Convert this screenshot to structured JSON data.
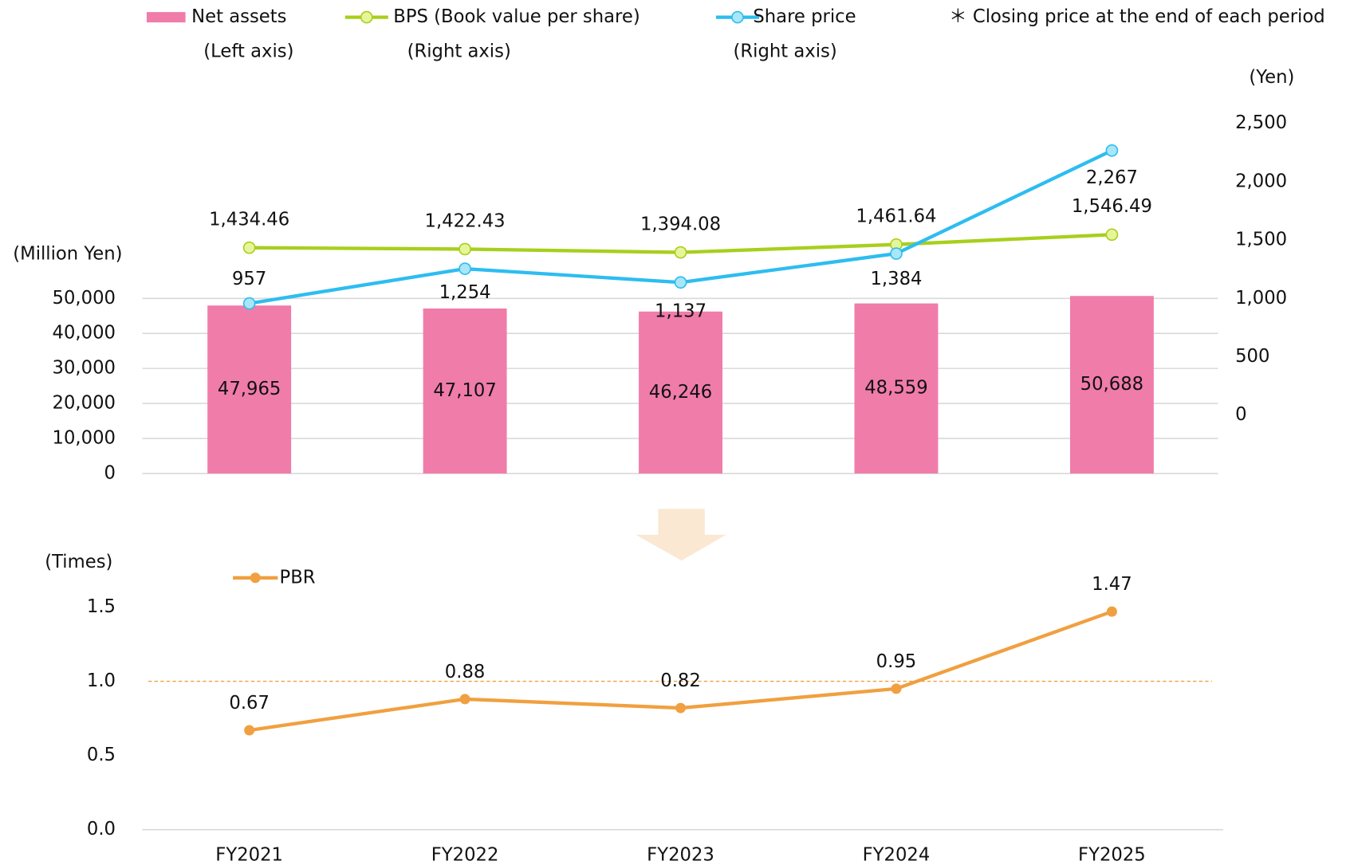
{
  "chart_data": [
    {
      "type": "bar_line",
      "ylabel": "(Million Yen)",
      "y2label": "(Yen)",
      "annotation": "＊ Closing price at the end of each period",
      "ylim": [
        0,
        100000
      ],
      "yticks": [
        0,
        {
          "value": 10000,
          "label": "10,000"
        },
        {
          "value": 20000,
          "label": "20,000"
        },
        {
          "value": 30000,
          "label": "30,000"
        },
        {
          "value": 40000,
          "label": "40,000"
        },
        {
          "value": 50000,
          "label": "50,000"
        }
      ],
      "y2lim": [
        -500,
        2500
      ],
      "y2ticks": [
        0,
        500,
        {
          "value": 1000,
          "label": "1,000"
        },
        {
          "value": 1500,
          "label": "1,500"
        },
        {
          "value": 2000,
          "label": "2,000"
        },
        {
          "value": 2500,
          "label": "2,500"
        }
      ],
      "series": [
        {
          "name": "Net assets",
          "legend_note": "(Left axis)",
          "type": "bar",
          "color": "#f07caa",
          "values": [
            47965,
            47107,
            46246,
            48559,
            50688
          ],
          "value_labels": [
            "47,965",
            "47,107",
            "46,246",
            "48,559",
            "50,688"
          ]
        },
        {
          "name": "BPS (Book value per share)",
          "legend_note": "(Right axis)",
          "type": "line",
          "axis": "y2",
          "color": "#a8cf1c",
          "marker_color": "#e6f59a",
          "values": [
            1434.46,
            1422.43,
            1394.08,
            1461.64,
            1546.49
          ],
          "value_labels": [
            "1,434.46",
            "1,422.43",
            "1,394.08",
            "1,461.64",
            "1,546.49"
          ]
        },
        {
          "name": "Share price",
          "legend_note": "(Right axis)",
          "type": "line",
          "axis": "y2",
          "color": "#2dbdf0",
          "marker_color": "#a9e6f7",
          "values": [
            957,
            1254,
            1137,
            1384,
            2267
          ],
          "value_labels": [
            "957",
            "1,254",
            "1,137",
            "1,384",
            "2,267"
          ]
        }
      ]
    },
    {
      "type": "line",
      "ylabel": "(Times)",
      "categories": [
        "FY2021",
        "FY2022",
        "FY2023",
        "FY2024",
        "FY2025"
      ],
      "ylim": [
        0,
        2
      ],
      "yticks": [
        {
          "value": 0,
          "label": "0.0"
        },
        0.5,
        {
          "value": 1,
          "label": "1.0"
        },
        1.5
      ],
      "reference_line": 1,
      "series": [
        {
          "name": "PBR",
          "color": "#f0a040",
          "values": [
            0.67,
            0.88,
            0.82,
            0.95,
            1.47
          ]
        }
      ]
    }
  ]
}
